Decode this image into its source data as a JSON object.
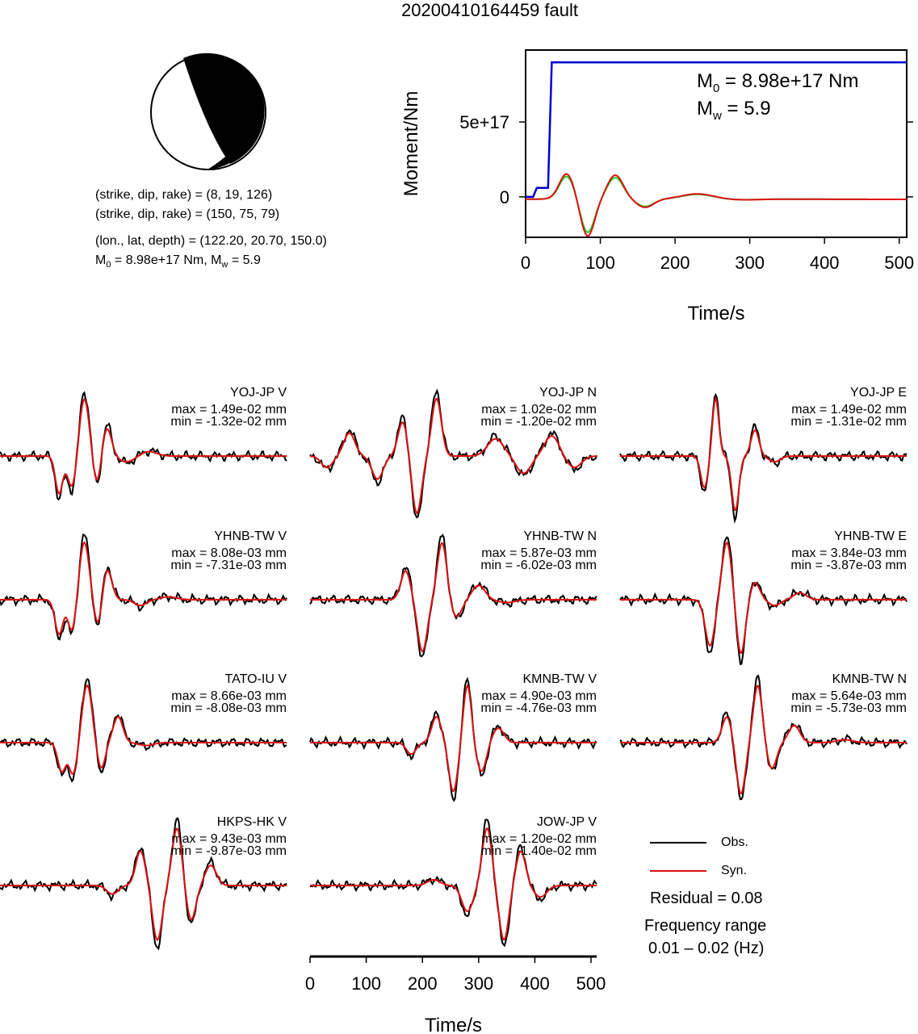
{
  "title": "20200410164459 fault",
  "focal": {
    "np1": "(strike, dip, rake) = (8, 19, 126)",
    "np2": "(strike, dip, rake) = (150, 75, 79)",
    "loc": "(lon., lat, depth) = (122.20, 20.70, 150.0)",
    "m0_label": "M",
    "m0_sub": "0",
    "m0_text": " = 8.98e+17 Nm, M",
    "mw_sub": "w",
    "mw_text": " = 5.9"
  },
  "stf_chart": {
    "type": "line",
    "ylabel": "Moment/Nm",
    "xlabel": "Time/s",
    "xlim": [
      0,
      510
    ],
    "ylim": [
      -270000000000000000,
      980000000000000000
    ],
    "xticks": [
      "0",
      "100",
      "200",
      "300",
      "400",
      "500"
    ],
    "yticks": [
      "0",
      "5e+17"
    ],
    "annot_m0_main": "M",
    "annot_m0_sub": "0",
    "annot_m0_val": " = 8.98e+17 Nm",
    "annot_mw_main": "M",
    "annot_mw_sub": "w",
    "annot_mw_val": " = 5.9",
    "series": [
      {
        "color": "#0000cc",
        "x": [
          0,
          10,
          15,
          30,
          35,
          510
        ],
        "y": [
          0,
          0,
          60000000000000000,
          60000000000000000,
          898000000000000000,
          898000000000000000
        ]
      }
    ]
  },
  "waveform_colors": {
    "obs": "#000000",
    "syn": "#dd1111",
    "syn2": "#22cc22"
  },
  "stations": [
    {
      "name": "YOJ-JP V",
      "max": "max = 1.49e-02 mm",
      "min": "min = -1.32e-02 mm"
    },
    {
      "name": "YOJ-JP N",
      "max": "max = 1.02e-02 mm",
      "min": "min = -1.20e-02 mm"
    },
    {
      "name": "YOJ-JP E",
      "max": "max = 1.49e-02 mm",
      "min": "min = -1.31e-02 mm"
    },
    {
      "name": "YHNB-TW V",
      "max": "max = 8.08e-03 mm",
      "min": "min = -7.31e-03 mm"
    },
    {
      "name": "YHNB-TW N",
      "max": "max = 5.87e-03 mm",
      "min": "min = -6.02e-03 mm"
    },
    {
      "name": "YHNB-TW E",
      "max": "max = 3.84e-03 mm",
      "min": "min = -3.87e-03 mm"
    },
    {
      "name": "TATO-IU V",
      "max": "max = 8.66e-03 mm",
      "min": "min = -8.08e-03 mm"
    },
    {
      "name": "KMNB-TW V",
      "max": "max = 4.90e-03 mm",
      "min": "min = -4.76e-03 mm"
    },
    {
      "name": "KMNB-TW N",
      "max": "max = 5.64e-03 mm",
      "min": "min = -5.73e-03 mm"
    },
    {
      "name": "HKPS-HK V",
      "max": "max = 9.43e-03 mm",
      "min": "min = -9.87e-03 mm"
    },
    {
      "name": "JOW-JP V",
      "max": "max = 1.20e-02 mm",
      "min": "min = -1.40e-02 mm"
    }
  ],
  "wave_axis": {
    "xlabel": "Time/s",
    "xticks": [
      "0",
      "100",
      "200",
      "300",
      "400",
      "500"
    ]
  },
  "legend": {
    "obs": "Obs.",
    "syn": "Syn."
  },
  "residual": "Residual = 0.08",
  "freq_label": "Frequency range",
  "freq_value": "0.01 – 0.02 (Hz)"
}
